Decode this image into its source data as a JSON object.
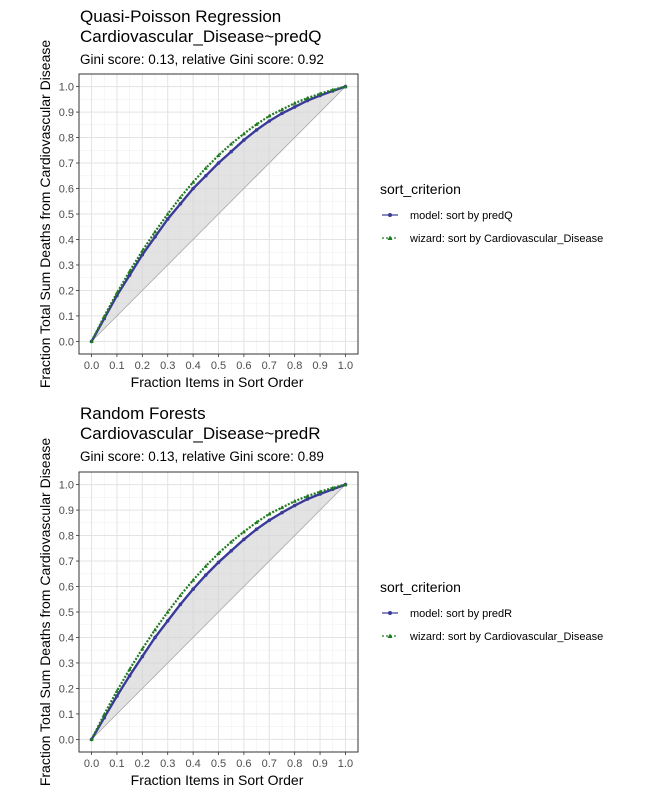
{
  "chart_data": [
    {
      "type": "line",
      "title": "Quasi-Poisson Regression",
      "title2": "Cardiovascular_Disease~predQ",
      "subtitle": "Gini score: 0.13, relative Gini score: 0.92",
      "xlabel": "Fraction Items in Sort Order",
      "ylabel": "Fraction Total Sum Deaths from Cardiovascular Disease",
      "xlim": [
        0,
        1
      ],
      "ylim": [
        0,
        1
      ],
      "xticks": [
        "0.0",
        "0.1",
        "0.2",
        "0.3",
        "0.4",
        "0.5",
        "0.6",
        "0.7",
        "0.8",
        "0.9",
        "1.0"
      ],
      "yticks": [
        "0.0",
        "0.1",
        "0.2",
        "0.3",
        "0.4",
        "0.5",
        "0.6",
        "0.7",
        "0.8",
        "0.9",
        "1.0"
      ],
      "grid": true,
      "legend": {
        "title": "sort_criterion",
        "placement": "right",
        "items": [
          "model: sort by predQ",
          "wizard: sort by Cardiovascular_Disease"
        ]
      },
      "x": [
        0,
        0.05,
        0.1,
        0.15,
        0.2,
        0.25,
        0.3,
        0.35,
        0.4,
        0.45,
        0.5,
        0.55,
        0.6,
        0.65,
        0.7,
        0.75,
        0.8,
        0.85,
        0.9,
        0.95,
        1.0
      ],
      "series": [
        {
          "name": "model: sort by predQ",
          "color": "#3a3a98",
          "values": [
            0.0,
            0.09,
            0.18,
            0.26,
            0.34,
            0.41,
            0.48,
            0.54,
            0.6,
            0.65,
            0.7,
            0.745,
            0.79,
            0.83,
            0.865,
            0.895,
            0.92,
            0.945,
            0.965,
            0.983,
            1.0
          ]
        },
        {
          "name": "wizard: sort by Cardiovascular_Disease",
          "color": "#1f7a1f",
          "values": [
            0.0,
            0.098,
            0.19,
            0.275,
            0.355,
            0.43,
            0.5,
            0.565,
            0.625,
            0.68,
            0.73,
            0.775,
            0.815,
            0.852,
            0.885,
            0.91,
            0.935,
            0.955,
            0.972,
            0.987,
            1.0
          ]
        }
      ]
    },
    {
      "type": "line",
      "title": "Random Forests",
      "title2": "Cardiovascular_Disease~predR",
      "subtitle": "Gini score: 0.13, relative Gini score: 0.89",
      "xlabel": "Fraction Items in Sort Order",
      "ylabel": "Fraction Total Sum Deaths from Cardiovascular Disease",
      "xlim": [
        0,
        1
      ],
      "ylim": [
        0,
        1
      ],
      "xticks": [
        "0.0",
        "0.1",
        "0.2",
        "0.3",
        "0.4",
        "0.5",
        "0.6",
        "0.7",
        "0.8",
        "0.9",
        "1.0"
      ],
      "yticks": [
        "0.0",
        "0.1",
        "0.2",
        "0.3",
        "0.4",
        "0.5",
        "0.6",
        "0.7",
        "0.8",
        "0.9",
        "1.0"
      ],
      "grid": true,
      "legend": {
        "title": "sort_criterion",
        "placement": "right",
        "items": [
          "model: sort by predR",
          "wizard: sort by Cardiovascular_Disease"
        ]
      },
      "x": [
        0,
        0.05,
        0.1,
        0.15,
        0.2,
        0.25,
        0.3,
        0.35,
        0.4,
        0.45,
        0.5,
        0.55,
        0.6,
        0.65,
        0.7,
        0.75,
        0.8,
        0.85,
        0.9,
        0.95,
        1.0
      ],
      "series": [
        {
          "name": "model: sort by predR",
          "color": "#3a3a98",
          "values": [
            0.0,
            0.085,
            0.17,
            0.25,
            0.325,
            0.4,
            0.465,
            0.53,
            0.59,
            0.645,
            0.695,
            0.74,
            0.785,
            0.825,
            0.86,
            0.89,
            0.918,
            0.943,
            0.963,
            0.982,
            1.0
          ]
        },
        {
          "name": "wizard: sort by Cardiovascular_Disease",
          "color": "#1f7a1f",
          "values": [
            0.0,
            0.098,
            0.19,
            0.275,
            0.355,
            0.43,
            0.5,
            0.565,
            0.625,
            0.68,
            0.73,
            0.775,
            0.815,
            0.852,
            0.885,
            0.91,
            0.935,
            0.955,
            0.972,
            0.987,
            1.0
          ]
        }
      ]
    }
  ]
}
